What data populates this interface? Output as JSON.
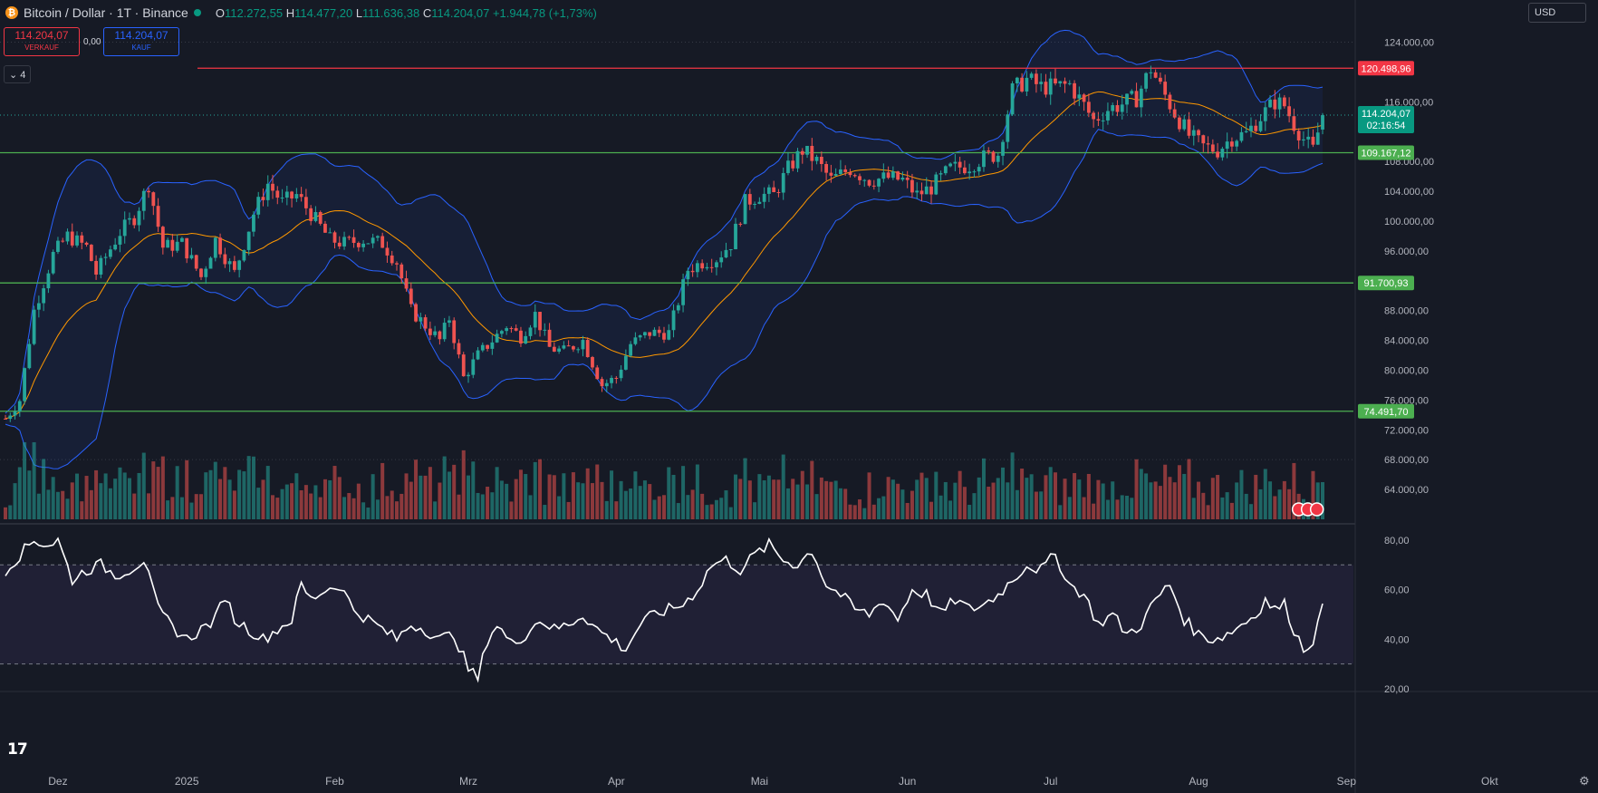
{
  "header": {
    "symbol": "Bitcoin / Dollar · 1T · Binance",
    "open_label": "O",
    "open": "112.272,55",
    "high_label": "H",
    "high": "114.477,20",
    "low_label": "L",
    "low": "111.636,38",
    "close_label": "C",
    "close": "114.204,07",
    "change": "+1.944,78 (+1,73%)"
  },
  "trade": {
    "sell_price": "114.204,07",
    "sell_label": "VERKAUF",
    "spread": "0,00",
    "buy_price": "114.204,07",
    "buy_label": "KAUF"
  },
  "indicators_toggle": "⌄ 4",
  "currency": "USD",
  "colors": {
    "bg": "#161a25",
    "up": "#26a69a",
    "down": "#ef5350",
    "bb": "#2962ff",
    "bb_mid": "#ff9800",
    "hline_red": "#f23645",
    "hline_green": "#4caf50",
    "rsi": "#ffffff"
  },
  "chart_data": {
    "type": "candlestick",
    "xaxis_labels": [
      {
        "label": "Dez",
        "day": 11
      },
      {
        "label": "2025",
        "day": 38
      },
      {
        "label": "Feb",
        "day": 69
      },
      {
        "label": "Mrz",
        "day": 97
      },
      {
        "label": "Apr",
        "day": 128
      },
      {
        "label": "Mai",
        "day": 158
      },
      {
        "label": "Jun",
        "day": 189
      },
      {
        "label": "Jul",
        "day": 219
      },
      {
        "label": "Aug",
        "day": 250
      },
      {
        "label": "Sep",
        "day": 281
      },
      {
        "label": "Okt",
        "day": 311
      }
    ],
    "price_axis_ticks": [
      "124.000,00",
      "116.000,00",
      "108.000,00",
      "104.000,00",
      "100.000,00",
      "96.000,00",
      "88.000,00",
      "84.000,00",
      "80.000,00",
      "76.000,00",
      "72.000,00",
      "68.000,00",
      "64.000,00"
    ],
    "ylim": [
      60000,
      126000
    ],
    "horizontal_lines": [
      {
        "value": 120498.96,
        "label": "120.498,96",
        "color": "red"
      },
      {
        "value": 109167.12,
        "label": "109.167,12",
        "color": "green"
      },
      {
        "value": 91700.93,
        "label": "91.700,93",
        "color": "green"
      },
      {
        "value": 74491.7,
        "label": "74.491,70",
        "color": "green"
      }
    ],
    "last_price": {
      "value": 114204.07,
      "label": "114.204,07",
      "countdown": "02:16:54"
    },
    "price_anchors": [
      [
        0,
        73500
      ],
      [
        3,
        76000
      ],
      [
        6,
        88000
      ],
      [
        10,
        95500
      ],
      [
        13,
        98000
      ],
      [
        17,
        96500
      ],
      [
        19,
        93000
      ],
      [
        24,
        98500
      ],
      [
        27,
        100500
      ],
      [
        30,
        105000
      ],
      [
        33,
        96500
      ],
      [
        37,
        97000
      ],
      [
        41,
        92500
      ],
      [
        44,
        97500
      ],
      [
        48,
        93000
      ],
      [
        52,
        101000
      ],
      [
        55,
        105000
      ],
      [
        58,
        102500
      ],
      [
        61,
        103500
      ],
      [
        64,
        101000
      ],
      [
        68,
        97500
      ],
      [
        71,
        97000
      ],
      [
        75,
        97500
      ],
      [
        79,
        97000
      ],
      [
        82,
        94500
      ],
      [
        85,
        88000
      ],
      [
        88,
        86000
      ],
      [
        91,
        84000
      ],
      [
        93,
        87000
      ],
      [
        96,
        79000
      ],
      [
        99,
        82000
      ],
      [
        102,
        84000
      ],
      [
        105,
        86000
      ],
      [
        108,
        84500
      ],
      [
        111,
        87500
      ],
      [
        114,
        83000
      ],
      [
        117,
        82500
      ],
      [
        121,
        84000
      ],
      [
        125,
        78000
      ],
      [
        128,
        79000
      ],
      [
        131,
        83500
      ],
      [
        135,
        85000
      ],
      [
        139,
        85000
      ],
      [
        143,
        93500
      ],
      [
        146,
        94500
      ],
      [
        149,
        95000
      ],
      [
        152,
        97000
      ],
      [
        155,
        102500
      ],
      [
        158,
        103500
      ],
      [
        161,
        103500
      ],
      [
        164,
        107000
      ],
      [
        167,
        109500
      ],
      [
        170,
        108000
      ],
      [
        173,
        105500
      ],
      [
        177,
        107000
      ],
      [
        181,
        105500
      ],
      [
        185,
        105800
      ],
      [
        188,
        105500
      ],
      [
        191,
        103500
      ],
      [
        194,
        104500
      ],
      [
        198,
        107000
      ],
      [
        202,
        107500
      ],
      [
        205,
        108500
      ],
      [
        208,
        109000
      ],
      [
        211,
        117500
      ],
      [
        214,
        119000
      ],
      [
        217,
        118000
      ],
      [
        220,
        118000
      ],
      [
        223,
        118300
      ],
      [
        226,
        115500
      ],
      [
        228,
        113500
      ],
      [
        231,
        115000
      ],
      [
        234,
        115700
      ],
      [
        237,
        116500
      ],
      [
        240,
        120500
      ],
      [
        242,
        118000
      ],
      [
        245,
        114500
      ],
      [
        248,
        111500
      ],
      [
        251,
        110000
      ],
      [
        254,
        109500
      ],
      [
        257,
        111200
      ],
      [
        260,
        111700
      ],
      [
        263,
        114000
      ],
      [
        266,
        116000
      ],
      [
        268,
        115500
      ],
      [
        270,
        113000
      ],
      [
        272,
        111000
      ],
      [
        274,
        109500
      ],
      [
        276,
        114204
      ]
    ],
    "volume_range": [
      0,
      100
    ],
    "rsi": {
      "ylim": [
        20,
        84
      ],
      "ticks": [
        "80,00",
        "60,00",
        "40,00",
        "20,00"
      ],
      "overbought": 70,
      "oversold": 30,
      "anchors": [
        [
          0,
          68
        ],
        [
          3,
          74
        ],
        [
          6,
          80
        ],
        [
          9,
          78
        ],
        [
          11,
          80
        ],
        [
          14,
          64
        ],
        [
          17,
          68
        ],
        [
          20,
          70
        ],
        [
          23,
          66
        ],
        [
          26,
          68
        ],
        [
          29,
          72
        ],
        [
          32,
          52
        ],
        [
          35,
          45
        ],
        [
          38,
          40
        ],
        [
          41,
          44
        ],
        [
          44,
          48
        ],
        [
          46,
          58
        ],
        [
          48,
          48
        ],
        [
          51,
          44
        ],
        [
          54,
          40
        ],
        [
          57,
          44
        ],
        [
          60,
          48
        ],
        [
          62,
          62
        ],
        [
          64,
          56
        ],
        [
          67,
          60
        ],
        [
          70,
          62
        ],
        [
          73,
          52
        ],
        [
          76,
          48
        ],
        [
          79,
          44
        ],
        [
          82,
          40
        ],
        [
          85,
          46
        ],
        [
          88,
          44
        ],
        [
          91,
          40
        ],
        [
          94,
          42
        ],
        [
          97,
          28
        ],
        [
          99,
          24
        ],
        [
          101,
          40
        ],
        [
          103,
          46
        ],
        [
          106,
          38
        ],
        [
          109,
          42
        ],
        [
          112,
          48
        ],
        [
          115,
          44
        ],
        [
          118,
          46
        ],
        [
          121,
          50
        ],
        [
          124,
          44
        ],
        [
          127,
          40
        ],
        [
          130,
          36
        ],
        [
          133,
          46
        ],
        [
          136,
          50
        ],
        [
          139,
          52
        ],
        [
          142,
          54
        ],
        [
          145,
          60
        ],
        [
          148,
          70
        ],
        [
          151,
          72
        ],
        [
          154,
          68
        ],
        [
          157,
          74
        ],
        [
          160,
          78
        ],
        [
          163,
          72
        ],
        [
          166,
          70
        ],
        [
          169,
          76
        ],
        [
          172,
          62
        ],
        [
          175,
          58
        ],
        [
          178,
          52
        ],
        [
          181,
          50
        ],
        [
          184,
          56
        ],
        [
          187,
          48
        ],
        [
          190,
          60
        ],
        [
          193,
          58
        ],
        [
          196,
          50
        ],
        [
          199,
          56
        ],
        [
          202,
          52
        ],
        [
          205,
          54
        ],
        [
          208,
          58
        ],
        [
          211,
          64
        ],
        [
          214,
          70
        ],
        [
          217,
          68
        ],
        [
          220,
          74
        ],
        [
          223,
          62
        ],
        [
          226,
          58
        ],
        [
          229,
          46
        ],
        [
          232,
          50
        ],
        [
          235,
          42
        ],
        [
          238,
          46
        ],
        [
          241,
          56
        ],
        [
          244,
          62
        ],
        [
          247,
          48
        ],
        [
          250,
          42
        ],
        [
          253,
          40
        ],
        [
          256,
          42
        ],
        [
          259,
          46
        ],
        [
          262,
          50
        ],
        [
          264,
          56
        ],
        [
          266,
          52
        ],
        [
          268,
          54
        ],
        [
          270,
          44
        ],
        [
          272,
          36
        ],
        [
          274,
          40
        ],
        [
          276,
          52
        ]
      ]
    }
  }
}
